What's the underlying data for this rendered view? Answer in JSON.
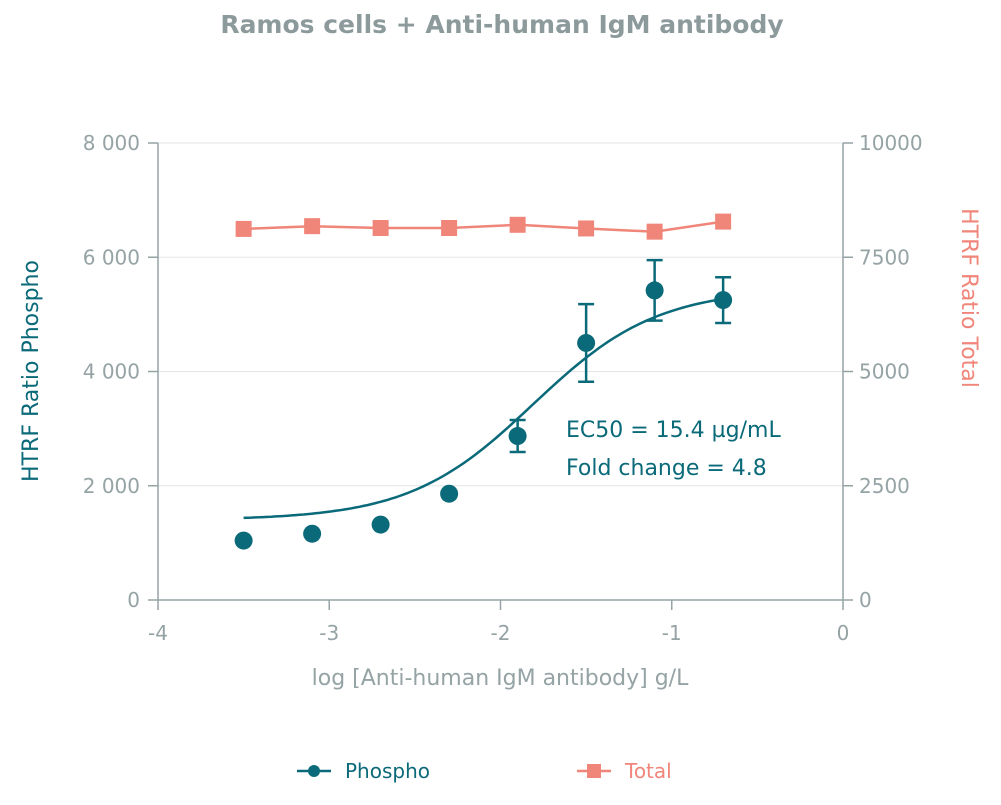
{
  "chart_data": {
    "type": "scatter",
    "title": "Ramos cells + Anti-human IgM antibody",
    "xlabel": "log [Anti-human IgM antibody] g/L",
    "ylabel_left": "HTRF Ratio Phospho",
    "ylabel_right": "HTRF Ratio Total",
    "xlim": [
      -4,
      0
    ],
    "ylim_left": [
      0,
      8000
    ],
    "ylim_right": [
      0,
      10000
    ],
    "x_ticks": [
      "-4",
      "-3",
      "-2",
      "-1",
      "0"
    ],
    "x_tick_values": [
      -4,
      -3,
      -2,
      -1,
      0
    ],
    "y_left_ticks": [
      "0",
      "2 000",
      "4 000",
      "6 000",
      "8 000"
    ],
    "y_left_tick_values": [
      0,
      2000,
      4000,
      6000,
      8000
    ],
    "y_right_ticks": [
      "0",
      "2500",
      "5000",
      "7500",
      "10000"
    ],
    "y_right_tick_values": [
      0,
      2500,
      5000,
      7500,
      10000
    ],
    "grid": "horizontal",
    "colors": {
      "phospho": "#0b6a79",
      "total": "#f0857a",
      "axis": "#95a3a5",
      "grid": "#e3e6e7"
    },
    "series": [
      {
        "name": "Phospho",
        "axis": "left",
        "marker": "circle",
        "x": [
          -3.5,
          -3.1,
          -2.7,
          -2.3,
          -1.9,
          -1.5,
          -1.1,
          -0.7
        ],
        "y": [
          1040,
          1160,
          1320,
          1860,
          2870,
          4500,
          5420,
          5250
        ],
        "err": [
          0,
          0,
          0,
          0,
          280,
          680,
          530,
          400
        ],
        "fit": {
          "bottom": 1400,
          "top": 5450,
          "log_ec50": -1.81,
          "hill": 1.2
        }
      },
      {
        "name": "Total",
        "axis": "right",
        "marker": "square",
        "x": [
          -3.5,
          -3.1,
          -2.7,
          -2.3,
          -1.9,
          -1.5,
          -1.1,
          -0.7
        ],
        "y": [
          8120,
          8180,
          8140,
          8140,
          8210,
          8130,
          8060,
          8280
        ]
      }
    ],
    "annotations": [
      "EC50 = 15.4 µg/mL",
      "Fold change = 4.8"
    ],
    "legend": [
      "Phospho",
      "Total"
    ],
    "legend_position": "bottom"
  }
}
